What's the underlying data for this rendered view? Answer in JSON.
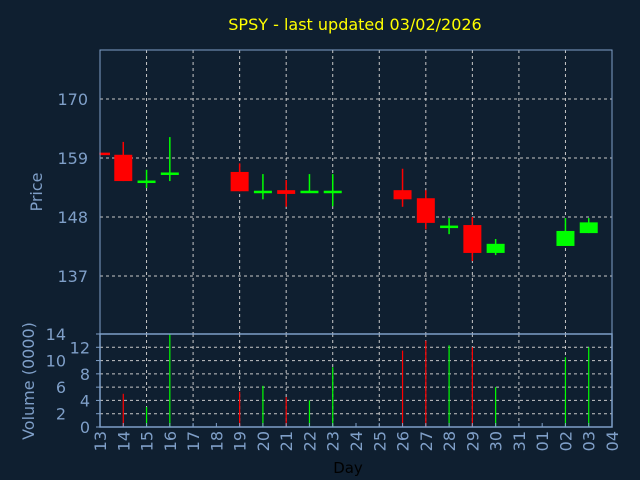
{
  "chart_data": {
    "type": "candlestick",
    "title": "SPSY - last updated 03/02/2026",
    "xlabel": "Day",
    "ylabel": "Price",
    "volume_label": "Volume (0000)",
    "x_ticks": [
      "13",
      "14",
      "15",
      "16",
      "17",
      "18",
      "19",
      "20",
      "21",
      "22",
      "23",
      "24",
      "25",
      "26",
      "27",
      "28",
      "29",
      "30",
      "31",
      "01",
      "02",
      "03",
      "04"
    ],
    "price_ticks": [
      137,
      148,
      159,
      170
    ],
    "price_range": [
      126,
      184
    ],
    "volume_ticks": [
      0,
      2,
      4,
      6,
      8,
      10,
      12,
      14
    ],
    "volume_range": [
      0,
      14
    ],
    "colors": {
      "up": "#00ff00",
      "down": "#ff0000",
      "title": "#ffff00",
      "axis": "#7f9fc8",
      "background": "#0f1f30"
    },
    "candles": [
      {
        "day": "13",
        "open": 160.0,
        "high": 160.0,
        "low": 159.6,
        "close": 159.6,
        "volume": 0
      },
      {
        "day": "14",
        "open": 159.6,
        "high": 162.0,
        "low": 154.7,
        "close": 154.7,
        "volume": 5
      },
      {
        "day": "15",
        "open": 154.6,
        "high": 156.8,
        "low": 153.4,
        "close": 154.8,
        "volume": 3
      },
      {
        "day": "16",
        "open": 156.1,
        "high": 162.9,
        "low": 154.7,
        "close": 156.3,
        "volume": 14
      },
      {
        "day": "19",
        "open": 156.4,
        "high": 158.0,
        "low": 152.8,
        "close": 152.8,
        "volume": 5.3
      },
      {
        "day": "20",
        "open": 152.7,
        "high": 156.0,
        "low": 151.3,
        "close": 152.9,
        "volume": 6.2
      },
      {
        "day": "21",
        "open": 153.0,
        "high": 154.9,
        "low": 149.9,
        "close": 152.3,
        "volume": 4.5
      },
      {
        "day": "22",
        "open": 152.7,
        "high": 156.0,
        "low": 152.7,
        "close": 152.9,
        "volume": 4
      },
      {
        "day": "23",
        "open": 152.7,
        "high": 156.0,
        "low": 150.0,
        "close": 152.9,
        "volume": 9
      },
      {
        "day": "26",
        "open": 153.0,
        "high": 157.0,
        "low": 149.9,
        "close": 151.3,
        "volume": 11.5
      },
      {
        "day": "27",
        "open": 151.5,
        "high": 153.0,
        "low": 145.7,
        "close": 146.9,
        "volume": 13
      },
      {
        "day": "28",
        "open": 146.2,
        "high": 147.8,
        "low": 144.8,
        "close": 146.4,
        "volume": 12.3
      },
      {
        "day": "29",
        "open": 146.5,
        "high": 148.0,
        "low": 139.8,
        "close": 141.3,
        "volume": 12
      },
      {
        "day": "30",
        "open": 141.3,
        "high": 143.9,
        "low": 140.9,
        "close": 143.0,
        "volume": 6
      },
      {
        "day": "02",
        "open": 142.6,
        "high": 147.8,
        "low": 142.6,
        "close": 145.4,
        "volume": 10.5
      },
      {
        "day": "03",
        "open": 145.0,
        "high": 147.8,
        "low": 145.0,
        "close": 147.0,
        "volume": 12
      }
    ]
  }
}
